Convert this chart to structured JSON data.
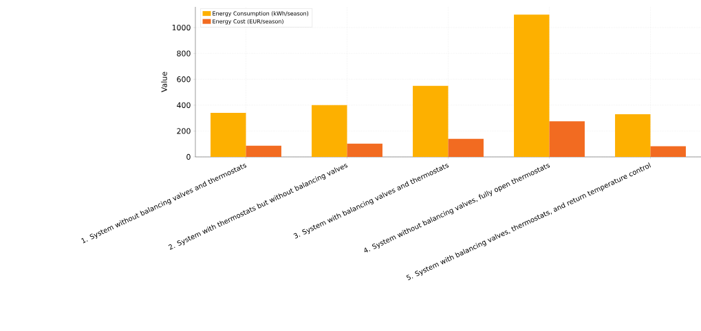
{
  "chart_data": {
    "type": "bar",
    "ylabel": "Value",
    "categories": [
      "1. System without balancing valves and thermostats",
      "2. System with thermostats but without balancing valves",
      "3. System with balancing valves and thermostats",
      "4. System without balancing valves, fully open thermostats",
      "5. System with balancing valves, thermostats, and return temperature control"
    ],
    "series": [
      {
        "name": "Energy Consumption (kWh/season)",
        "color": "#fdb000",
        "values": [
          340,
          400,
          550,
          1100,
          330
        ]
      },
      {
        "name": "Energy Cost (EUR/season)",
        "color": "#f26b21",
        "values": [
          87,
          103,
          140,
          275,
          82
        ]
      }
    ],
    "ylim": [
      0,
      1160
    ],
    "yticks": [
      0,
      200,
      400,
      600,
      800,
      1000
    ],
    "grid": true,
    "legend": "top left"
  }
}
